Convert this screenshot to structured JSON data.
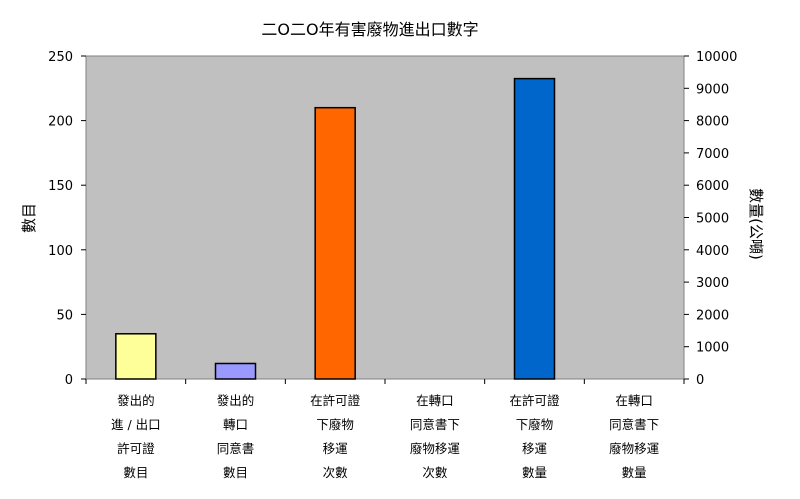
{
  "chart_data": {
    "type": "bar",
    "title": "二O二O年有害廢物進出口數字",
    "ylabel": "數目",
    "y2label": "數量(公噸)",
    "ylim": [
      0,
      250
    ],
    "y2lim": [
      0,
      10000
    ],
    "yticks": [
      "0",
      "50",
      "100",
      "150",
      "200",
      "250"
    ],
    "y2ticks": [
      "0",
      "1000",
      "2000",
      "3000",
      "4000",
      "5000",
      "6000",
      "7000",
      "8000",
      "9000",
      "10000"
    ],
    "grid": false,
    "categories": [
      [
        "發出的",
        "進 / 出口",
        "許可證",
        "數目"
      ],
      [
        "發出的",
        "轉口",
        "同意書",
        "數目"
      ],
      [
        "在許可證",
        "下廢物",
        "移運",
        "次數"
      ],
      [
        "在轉口",
        "同意書下",
        "廢物移運",
        "次數"
      ],
      [
        "在許可證",
        "下廢物",
        "移運",
        "數量"
      ],
      [
        "在轉口",
        "同意書下",
        "廢物移運",
        "數量"
      ]
    ],
    "values": [
      35,
      12,
      210,
      0,
      9300,
      0
    ],
    "axis": [
      "left",
      "left",
      "left",
      "left",
      "right",
      "right"
    ],
    "colors": [
      "#FFFF99",
      "#9999FF",
      "#FF6600",
      "#C0C0C0",
      "#0066CC",
      "#C0C0C0"
    ],
    "plot_background": "#C0C0C0"
  }
}
